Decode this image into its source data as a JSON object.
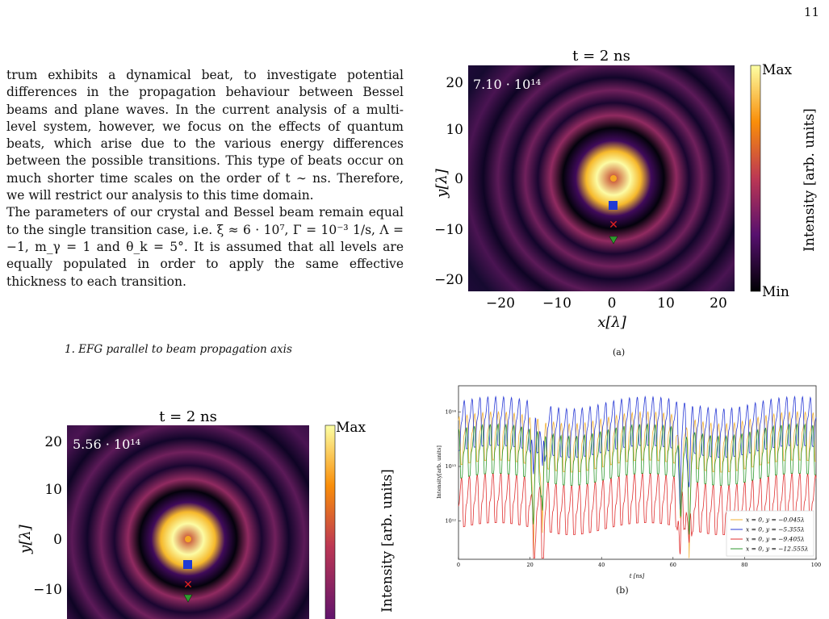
{
  "page_number": "11",
  "body": {
    "paragraph_1": "trum exhibits a dynamical beat, to investigate potential differences in the propagation behaviour between Bessel beams and plane waves. In the current analysis of a multi-level system, however, we focus on the effects of quantum beats, which arise due to the various energy differences between the possible transitions. This type of beats occur on much shorter time scales on the order of t ∼ ns. Therefore, we will restrict our analysis to this time domain.",
    "paragraph_2": "The parameters of our crystal and Bessel beam remain equal to the single transition case, i.e. ξ ≈ 6 · 10⁷, Γ = 10⁻³ 1/s, Λ = −1, m_γ = 1 and θ_k = 5°. It is assumed that all levels are equally populated in order to apply the same effective thickness to each transition.",
    "subsection": "1.   EFG parallel to beam propagation axis"
  },
  "figure_a": {
    "title": "t = 2 ns",
    "peak_label": "7.10 · 10¹⁴",
    "xlabel": "x[λ]",
    "ylabel": "y[λ]",
    "x_ticks": [
      "−20",
      "−10",
      "0",
      "10",
      "20"
    ],
    "y_ticks": [
      "20",
      "10",
      "0",
      "−10",
      "−20"
    ],
    "colorbar_label": "Intensity [arb. units]",
    "colorbar_max": "Max",
    "colorbar_min": "Min",
    "caption": "(a)"
  },
  "figure_c": {
    "title": "t = 2 ns",
    "peak_label": "5.56 · 10¹⁴",
    "ylabel": "y[λ]",
    "y_ticks": [
      "20",
      "10",
      "0",
      "−10"
    ],
    "colorbar_label": "Intensity [arb. units]",
    "colorbar_max": "Max"
  },
  "figure_b": {
    "caption": "(b)",
    "chart_data": {
      "type": "line",
      "xlabel": "t [ns]",
      "ylabel": "Intensity[arb. units]",
      "xlim": [
        0,
        100
      ],
      "ylim": [
        200000000000.0,
        300000000000000.0
      ],
      "yscale": "log",
      "x_ticks": [
        "0",
        "20",
        "40",
        "60",
        "80",
        "100"
      ],
      "y_ticks": [
        "10¹²",
        "10¹³",
        "10¹⁴"
      ],
      "legend_position": "lower-right",
      "series": [
        {
          "name": "x = 0, y = −0.045λ",
          "color": "#f2b134",
          "base": 70000000000000.0,
          "amp": 0.45,
          "dip": 0.02
        },
        {
          "name": "x = 0, y = −5.355λ",
          "color": "#2a3bd6",
          "base": 130000000000000.0,
          "amp": 0.5,
          "dip": 0.08
        },
        {
          "name": "x = 0, y = −9.405λ",
          "color": "#e03030",
          "base": 5000000000000.0,
          "amp": 0.6,
          "dip": 0.08
        },
        {
          "name": "x = 0, y = −12.555λ",
          "color": "#2f9a2f",
          "base": 40000000000000.0,
          "amp": 0.55,
          "dip": 0.1
        }
      ]
    }
  }
}
